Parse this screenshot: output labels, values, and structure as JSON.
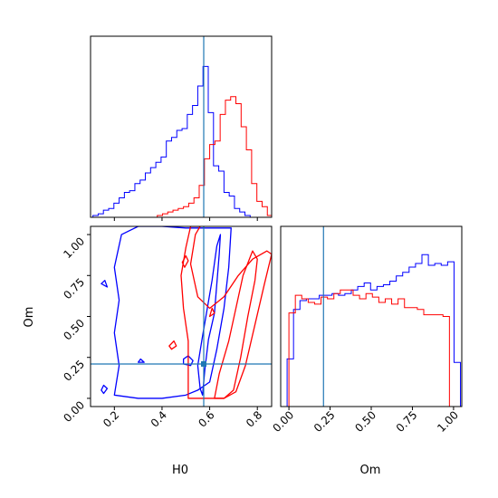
{
  "chart_data": {
    "type": "corner",
    "params": [
      "H0",
      "Om"
    ],
    "labels": {
      "H0": "H0",
      "Om": "Om"
    },
    "truths": {
      "H0": 0.575,
      "Om": 0.21
    },
    "ranges": {
      "H0": [
        0.1,
        0.86
      ],
      "Om": [
        -0.05,
        1.05
      ]
    },
    "series": [
      {
        "color": "#0000ff",
        "hist_H0": {
          "bin_edges": [
            0.11,
            0.132,
            0.154,
            0.176,
            0.198,
            0.22,
            0.242,
            0.264,
            0.286,
            0.308,
            0.33,
            0.352,
            0.374,
            0.396,
            0.418,
            0.44,
            0.462,
            0.484,
            0.506,
            0.528,
            0.55,
            0.572,
            0.594,
            0.616,
            0.638,
            0.66,
            0.682,
            0.704,
            0.726,
            0.748,
            0.77,
            0.792
          ],
          "counts": [
            0.01,
            0.02,
            0.04,
            0.05,
            0.08,
            0.11,
            0.14,
            0.15,
            0.19,
            0.21,
            0.25,
            0.28,
            0.31,
            0.34,
            0.43,
            0.45,
            0.49,
            0.5,
            0.58,
            0.63,
            0.74,
            0.85,
            0.59,
            0.29,
            0.26,
            0.14,
            0.12,
            0.05,
            0.03,
            0.01,
            0.0
          ]
        },
        "hist_Om": {
          "bin_edges": [
            -0.05,
            -0.011,
            0.028,
            0.067,
            0.106,
            0.145,
            0.184,
            0.223,
            0.262,
            0.301,
            0.34,
            0.379,
            0.418,
            0.457,
            0.496,
            0.535,
            0.574,
            0.613,
            0.652,
            0.691,
            0.73,
            0.769,
            0.808,
            0.847,
            0.886,
            0.925,
            0.964,
            1.003,
            1.042
          ],
          "counts": [
            0.0,
            0.27,
            0.55,
            0.6,
            0.61,
            0.61,
            0.63,
            0.63,
            0.64,
            0.63,
            0.64,
            0.66,
            0.68,
            0.7,
            0.66,
            0.68,
            0.69,
            0.71,
            0.74,
            0.76,
            0.79,
            0.81,
            0.86,
            0.8,
            0.81,
            0.8,
            0.82,
            0.25
          ]
        },
        "contours": [
          {
            "level": "inner",
            "points": [
              [
                0.57,
                0.02
              ],
              [
                0.58,
                0.18
              ],
              [
                0.595,
                0.36
              ],
              [
                0.62,
                0.52
              ],
              [
                0.63,
                0.7
              ],
              [
                0.64,
                0.88
              ],
              [
                0.645,
                1.0
              ],
              [
                0.63,
                0.93
              ],
              [
                0.61,
                0.72
              ],
              [
                0.59,
                0.55
              ],
              [
                0.57,
                0.38
              ],
              [
                0.55,
                0.2
              ],
              [
                0.56,
                0.06
              ]
            ]
          },
          {
            "level": "outer",
            "points": [
              [
                0.2,
                0.02
              ],
              [
                0.3,
                0.0
              ],
              [
                0.4,
                0.0
              ],
              [
                0.5,
                0.02
              ],
              [
                0.55,
                0.05
              ],
              [
                0.6,
                0.1
              ],
              [
                0.63,
                0.3
              ],
              [
                0.66,
                0.55
              ],
              [
                0.68,
                0.8
              ],
              [
                0.69,
                1.04
              ],
              [
                0.6,
                1.04
              ],
              [
                0.5,
                1.04
              ],
              [
                0.4,
                1.05
              ],
              [
                0.3,
                1.05
              ],
              [
                0.23,
                1.0
              ],
              [
                0.2,
                0.8
              ],
              [
                0.22,
                0.6
              ],
              [
                0.2,
                0.4
              ],
              [
                0.22,
                0.2
              ]
            ]
          },
          {
            "level": "island",
            "points": [
              [
                0.49,
                0.21
              ],
              [
                0.52,
                0.2
              ],
              [
                0.53,
                0.23
              ],
              [
                0.51,
                0.26
              ],
              [
                0.49,
                0.24
              ]
            ]
          },
          {
            "level": "island",
            "points": [
              [
                0.155,
                0.03
              ],
              [
                0.17,
                0.06
              ],
              [
                0.155,
                0.08
              ],
              [
                0.145,
                0.05
              ]
            ]
          },
          {
            "level": "island",
            "points": [
              [
                0.3,
                0.22
              ],
              [
                0.325,
                0.22
              ],
              [
                0.31,
                0.24
              ]
            ]
          },
          {
            "level": "island",
            "points": [
              [
                0.145,
                0.7
              ],
              [
                0.17,
                0.68
              ],
              [
                0.16,
                0.72
              ]
            ]
          }
        ]
      },
      {
        "color": "#ff0000",
        "hist_H0": {
          "bin_edges": [
            0.38,
            0.402,
            0.424,
            0.446,
            0.468,
            0.49,
            0.512,
            0.534,
            0.556,
            0.578,
            0.6,
            0.622,
            0.644,
            0.666,
            0.688,
            0.71,
            0.732,
            0.754,
            0.776,
            0.798,
            0.82,
            0.842,
            0.864
          ],
          "counts": [
            0.01,
            0.02,
            0.03,
            0.04,
            0.05,
            0.06,
            0.08,
            0.11,
            0.18,
            0.33,
            0.41,
            0.43,
            0.58,
            0.66,
            0.68,
            0.64,
            0.51,
            0.38,
            0.19,
            0.09,
            0.06,
            0.01
          ]
        },
        "hist_Om": {
          "bin_edges": [
            0.0,
            0.039,
            0.078,
            0.117,
            0.156,
            0.195,
            0.234,
            0.273,
            0.312,
            0.351,
            0.39,
            0.429,
            0.468,
            0.507,
            0.546,
            0.585,
            0.624,
            0.663,
            0.702,
            0.741,
            0.78,
            0.819,
            0.858,
            0.897,
            0.936,
            0.975,
            1.014
          ],
          "counts": [
            0.53,
            0.63,
            0.61,
            0.59,
            0.58,
            0.62,
            0.61,
            0.64,
            0.66,
            0.66,
            0.63,
            0.61,
            0.64,
            0.62,
            0.59,
            0.61,
            0.58,
            0.61,
            0.56,
            0.56,
            0.55,
            0.52,
            0.52,
            0.52,
            0.51,
            0.0
          ]
        },
        "contours": [
          {
            "level": "inner",
            "points": [
              [
                0.62,
                0.0
              ],
              [
                0.66,
                0.0
              ],
              [
                0.7,
                0.05
              ],
              [
                0.73,
                0.25
              ],
              [
                0.76,
                0.5
              ],
              [
                0.79,
                0.72
              ],
              [
                0.8,
                0.85
              ],
              [
                0.78,
                0.9
              ],
              [
                0.74,
                0.75
              ],
              [
                0.71,
                0.55
              ],
              [
                0.68,
                0.35
              ],
              [
                0.64,
                0.15
              ]
            ]
          },
          {
            "level": "outer",
            "points": [
              [
                0.51,
                0.0
              ],
              [
                0.6,
                0.0
              ],
              [
                0.66,
                0.0
              ],
              [
                0.71,
                0.04
              ],
              [
                0.75,
                0.2
              ],
              [
                0.79,
                0.45
              ],
              [
                0.83,
                0.7
              ],
              [
                0.86,
                0.88
              ],
              [
                0.84,
                0.9
              ],
              [
                0.78,
                0.85
              ],
              [
                0.72,
                0.75
              ],
              [
                0.66,
                0.62
              ],
              [
                0.6,
                0.55
              ],
              [
                0.55,
                0.62
              ],
              [
                0.52,
                0.82
              ],
              [
                0.54,
                1.0
              ],
              [
                0.56,
                1.05
              ],
              [
                0.52,
                1.05
              ],
              [
                0.5,
                0.92
              ],
              [
                0.48,
                0.75
              ],
              [
                0.49,
                0.55
              ],
              [
                0.51,
                0.35
              ],
              [
                0.51,
                0.15
              ]
            ]
          },
          {
            "level": "island",
            "points": [
              [
                0.495,
                0.8
              ],
              [
                0.51,
                0.84
              ],
              [
                0.5,
                0.87
              ],
              [
                0.485,
                0.83
              ]
            ]
          },
          {
            "level": "island",
            "points": [
              [
                0.44,
                0.3
              ],
              [
                0.46,
                0.32
              ],
              [
                0.45,
                0.35
              ],
              [
                0.43,
                0.32
              ]
            ]
          },
          {
            "level": "island",
            "points": [
              [
                0.6,
                0.5
              ],
              [
                0.62,
                0.52
              ],
              [
                0.61,
                0.55
              ]
            ]
          }
        ]
      }
    ],
    "ticks": {
      "H0": [
        0.2,
        0.4,
        0.6,
        0.8
      ],
      "H0_labels": [
        "0.2",
        "0.4",
        "0.6",
        "0.8"
      ],
      "Om": [
        0.0,
        0.25,
        0.5,
        0.75,
        1.0
      ],
      "Om_labels": [
        "0.00",
        "0.25",
        "0.50",
        "0.75",
        "1.00"
      ]
    },
    "truth_color": "#1f77b4"
  }
}
